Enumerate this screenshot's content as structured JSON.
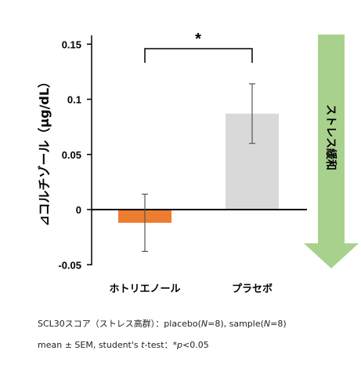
{
  "chart_data": {
    "type": "bar",
    "categories": [
      "ホトリエノール",
      "プラセボ"
    ],
    "values": [
      -0.012,
      0.087
    ],
    "errors": [
      0.026,
      0.027
    ],
    "ylabel": "⊿コルチゾール（μg/dL）",
    "ylim": [
      -0.05,
      0.16
    ],
    "yticks": [
      "0.15",
      "0.1",
      "0.05",
      "0",
      "-0.05"
    ],
    "ytick_values": [
      0.15,
      0.1,
      0.05,
      0,
      -0.05
    ],
    "bar_colors": [
      "#ED7D31",
      "#D9D9D9"
    ],
    "significance": "*",
    "arrow_label": "ストレス緩和",
    "arrow_color": "#A9D18E",
    "grid": false,
    "legend": "none"
  },
  "notes": {
    "line1_a": "SCL30スコア（ストレス高群）：placebo(",
    "line1_n": "N",
    "line1_b": "=8), sample(",
    "line1_n2": "N",
    "line1_c": "=8)",
    "line2_a": "mean ± SEM, student's ",
    "line2_t": "t",
    "line2_b": "-test：*",
    "line2_p": "p",
    "line2_c": "<0.05"
  }
}
